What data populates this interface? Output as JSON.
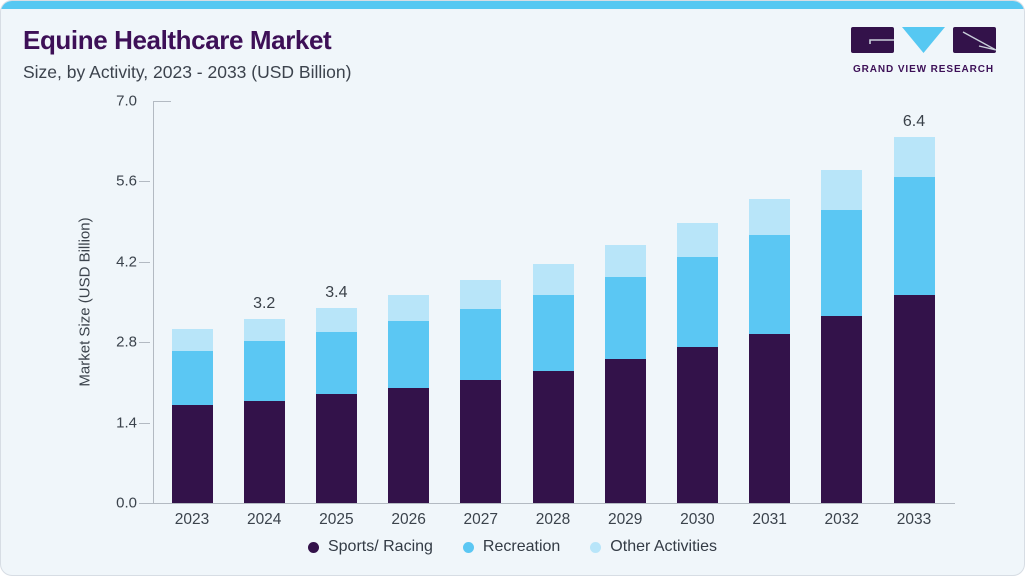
{
  "header": {
    "title": "Equine Healthcare Market",
    "subtitle": "Size, by Activity, 2023 - 2033 (USD Billion)",
    "brand": "GRAND VIEW RESEARCH"
  },
  "colors": {
    "accent_bar": "#56C8F2",
    "card_background": "#F0F6FA",
    "title_purple": "#3D1057",
    "axis_line": "#B3BAC2",
    "axis_text": "#3B434C",
    "sports_racing": "#33124A",
    "recreation": "#5BC7F3",
    "other_activities": "#B8E5F9"
  },
  "chart_data": {
    "type": "bar",
    "stacked": true,
    "title": "Equine Healthcare Market Size, by Activity, 2023 - 2033 (USD Billion)",
    "xlabel": "",
    "ylabel": "Market Size (USD Billion)",
    "ylim": [
      0,
      7.0
    ],
    "yticks": [
      0.0,
      1.4,
      2.8,
      4.2,
      5.6,
      7.0
    ],
    "grid": false,
    "legend_position": "bottom",
    "categories": [
      "2023",
      "2024",
      "2025",
      "2026",
      "2027",
      "2028",
      "2029",
      "2030",
      "2031",
      "2032",
      "2033"
    ],
    "series": [
      {
        "name": "Sports/ Racing",
        "color": "#33124A",
        "values": [
          1.7,
          1.77,
          1.9,
          2.01,
          2.14,
          2.3,
          2.5,
          2.71,
          2.95,
          3.26,
          3.62
        ]
      },
      {
        "name": "Recreation",
        "color": "#5BC7F3",
        "values": [
          0.95,
          1.05,
          1.08,
          1.16,
          1.24,
          1.32,
          1.43,
          1.58,
          1.72,
          1.85,
          2.05
        ]
      },
      {
        "name": "Other Activities",
        "color": "#B8E5F9",
        "values": [
          0.38,
          0.38,
          0.42,
          0.45,
          0.5,
          0.54,
          0.56,
          0.58,
          0.63,
          0.69,
          0.7
        ]
      }
    ],
    "totals": [
      3.0,
      3.2,
      3.4,
      3.6,
      3.9,
      4.2,
      4.5,
      4.9,
      5.3,
      5.8,
      6.4
    ],
    "total_labels": {
      "2024": "3.2",
      "2025": "3.4",
      "2033": "6.4"
    }
  }
}
